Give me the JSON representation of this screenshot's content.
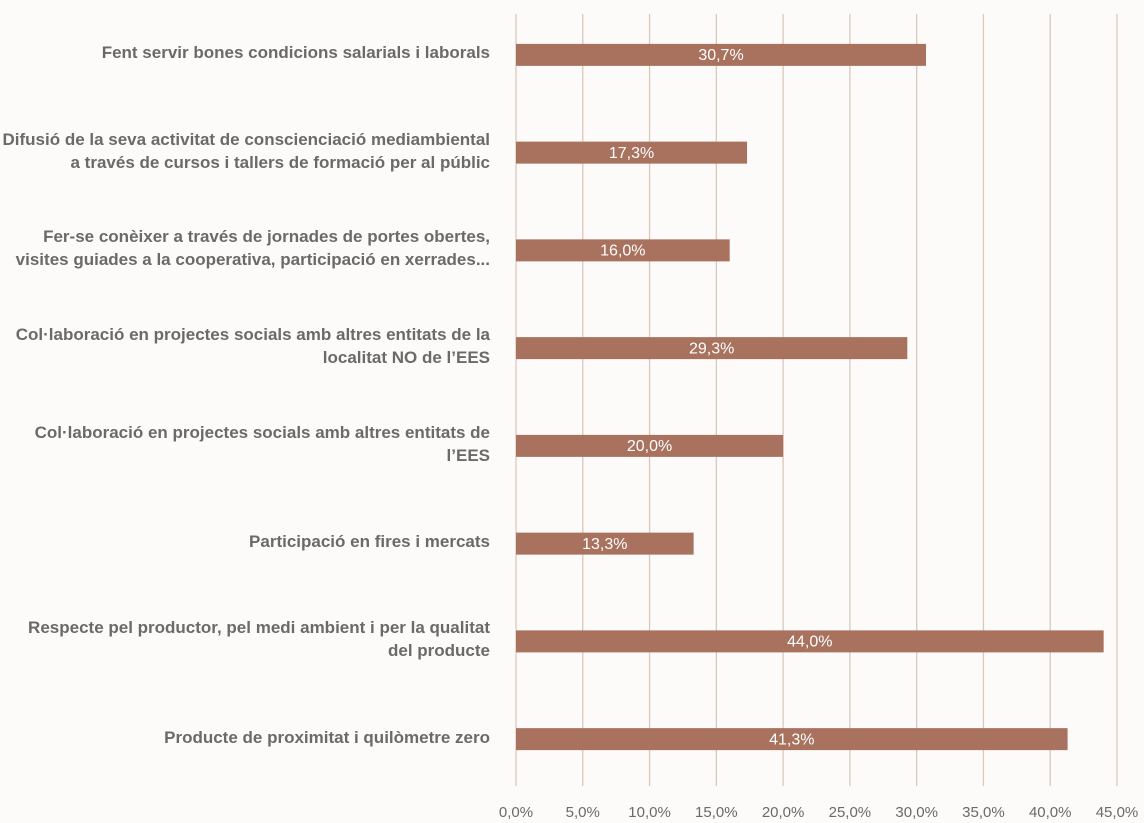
{
  "chart_data": {
    "type": "bar",
    "orientation": "horizontal",
    "categories": [
      "Fent servir bones condicions salarials i laborals",
      "Difusió de la seva activitat de conscienciació mediambiental a través de cursos i tallers de formació per al públic",
      "Fer-se conèixer a través de jornades de portes obertes, visites guiades a la cooperativa, participació en xerrades...",
      "Col·laboració en projectes socials amb altres entitats de la localitat NO de l’EES",
      "Col·laboració en projectes socials amb altres entitats de l’EES",
      "Participació en fires i mercats",
      "Respecte pel productor, pel medi ambient i per la qualitat del producte",
      "Producte de proximitat i quilòmetre zero"
    ],
    "values": [
      30.7,
      17.3,
      16.0,
      29.3,
      20.0,
      13.3,
      44.0,
      41.3
    ],
    "value_labels": [
      "30,7%",
      "17,3%",
      "16,0%",
      "29,3%",
      "20,0%",
      "13,3%",
      "44,0%",
      "41,3%"
    ],
    "color": "#a8725f",
    "xlim": [
      0,
      45
    ],
    "xticks": [
      {
        "value": 0,
        "label": "0,0%"
      },
      {
        "value": 5,
        "label": "5,0%"
      },
      {
        "value": 10,
        "label": "10,0%"
      },
      {
        "value": 15,
        "label": "15,0%"
      },
      {
        "value": 20,
        "label": "20,0%"
      },
      {
        "value": 25,
        "label": "25,0%"
      },
      {
        "value": 30,
        "label": "30,0%"
      },
      {
        "value": 35,
        "label": "35,0%"
      },
      {
        "value": 40,
        "label": "40,0%"
      },
      {
        "value": 45,
        "label": "45,0%"
      }
    ],
    "grid": true
  }
}
